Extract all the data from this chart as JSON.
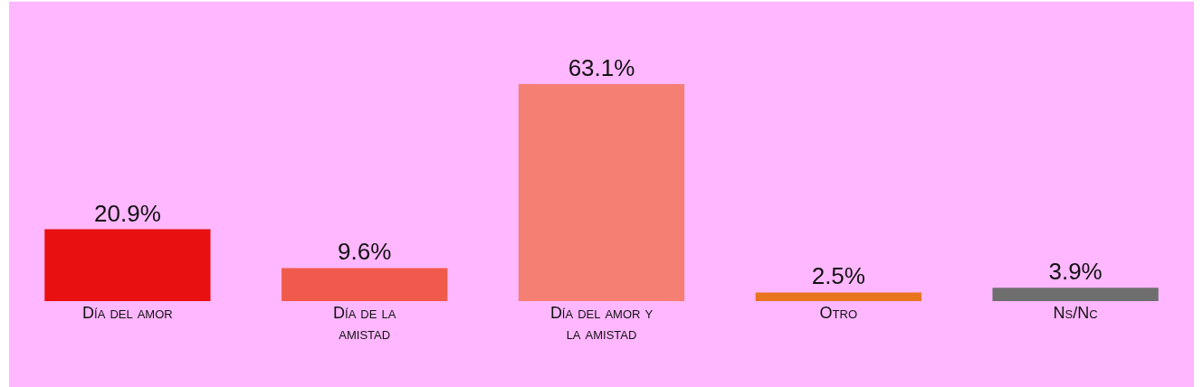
{
  "chart_data": {
    "type": "bar",
    "categories": [
      "Día del amor",
      "Día de la amistad",
      "Día del amor y la amistad",
      "Otro",
      "Ns/Nc"
    ],
    "values": [
      20.9,
      9.6,
      63.1,
      2.5,
      3.9
    ],
    "colors": [
      "#e81010",
      "#ef5a4c",
      "#f57f72",
      "#e8741e",
      "#6e6e6e"
    ],
    "value_labels": [
      "20.9%",
      "9.6%",
      "63.1%",
      "2.5%",
      "3.9%"
    ],
    "data_labels": false
  }
}
